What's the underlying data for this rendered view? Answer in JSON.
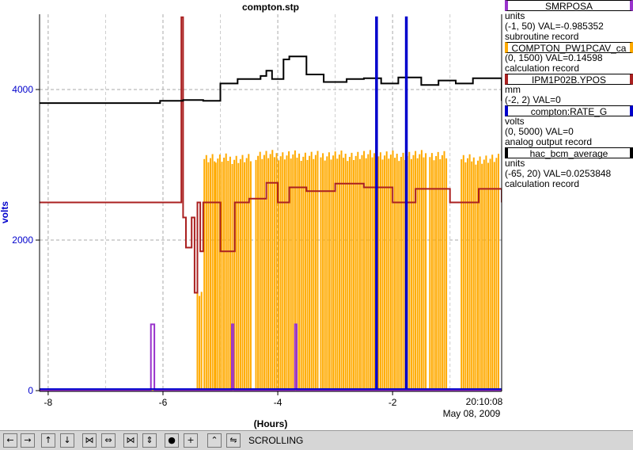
{
  "chart_data": {
    "type": "line",
    "title": "compton.stp",
    "xlabel": "(Hours)",
    "ylabel": "volts",
    "xlim": [
      -8.15,
      -0.1
    ],
    "ylim": [
      -10,
      5000
    ],
    "x_ticks": [
      -8,
      -6,
      -4,
      -2
    ],
    "x_tick_labels": [
      "-8",
      "-6",
      "-4",
      "-2"
    ],
    "y_ticks": [
      0,
      2000,
      4000
    ],
    "y_tick_labels": [
      "0",
      "2000",
      "4000"
    ],
    "timestamp_time": "20:10:08",
    "timestamp_date": "May 08, 2009",
    "grid": true,
    "series": [
      {
        "name": "hac_bcm_average",
        "color": "#000000",
        "range": "(-65, 20)",
        "x": [
          -8.15,
          -6.1,
          -6.05,
          -5.7,
          -5.65,
          -5.35,
          -5.3,
          -5.0,
          -4.7,
          -4.3,
          -4.2,
          -4.1,
          -3.9,
          -3.8,
          -3.5,
          -3.2,
          -2.8,
          -2.5,
          -2.2,
          -1.9,
          -1.5,
          -1.2,
          -0.9,
          -0.6,
          -0.1
        ],
        "y": [
          3820,
          3820,
          3850,
          3850,
          3860,
          3860,
          3850,
          4080,
          4140,
          4180,
          4250,
          4140,
          4400,
          4440,
          4200,
          4100,
          4140,
          4150,
          4080,
          4160,
          4060,
          4120,
          4080,
          4150,
          3850
        ]
      },
      {
        "name": "IPM1P02B.YPOS",
        "color": "#aa2020",
        "range": "(-2, 2)",
        "x": [
          -8.15,
          -5.7,
          -5.68,
          -5.65,
          -5.6,
          -5.5,
          -5.45,
          -5.4,
          -5.35,
          -5.3,
          -5.0,
          -4.9,
          -4.8,
          -4.75,
          -4.7,
          -4.5,
          -4.2,
          -4.0,
          -3.8,
          -3.5,
          -3.0,
          -2.5,
          -2.0,
          -1.6,
          -1.0,
          -0.5,
          -0.1
        ],
        "y": [
          2500,
          2500,
          4960,
          2300,
          1900,
          2300,
          1300,
          2500,
          1850,
          2500,
          1850,
          1850,
          1850,
          2500,
          2500,
          2550,
          2760,
          2500,
          2700,
          2650,
          2750,
          2700,
          2500,
          2680,
          2500,
          2680,
          2500
        ]
      },
      {
        "name": "COMPTON_PW1PCAV_ca",
        "color": "#ffaa00",
        "range": "(0, 1500)",
        "bursts": [
          [
            -5.4,
            -5.3,
            1400
          ],
          [
            -5.28,
            -5.1,
            3150
          ],
          [
            -5.08,
            -4.45,
            3150
          ],
          [
            -4.38,
            -3.3,
            3200
          ],
          [
            -3.25,
            -1.4,
            3200
          ],
          [
            -1.35,
            -1.05,
            3200
          ],
          [
            -0.8,
            -0.15,
            3150
          ]
        ],
        "baseline": 10
      },
      {
        "name": "SMRPOSA",
        "color": "#9933cc",
        "range": "(-1, 50)",
        "x": [
          -8.15,
          -6.22,
          -6.21,
          -6.16,
          -6.15,
          -4.82,
          -4.8,
          -4.79,
          -4.77,
          -3.72,
          -3.7,
          -3.69,
          -3.67,
          -0.1
        ],
        "y": [
          0,
          0,
          880,
          880,
          0,
          0,
          880,
          880,
          0,
          0,
          880,
          880,
          0,
          0
        ]
      },
      {
        "name": "compton:RATE_G",
        "color": "#0000cc",
        "range": "(0, 5000)",
        "x": [
          -8.15,
          -2.3,
          -2.29,
          -2.28,
          -2.27,
          -1.78,
          -1.77,
          -1.76,
          -1.75,
          -1.7,
          -0.1
        ],
        "y": [
          20,
          20,
          4960,
          4960,
          20,
          20,
          4960,
          4960,
          20,
          20,
          20
        ]
      }
    ]
  },
  "legend": [
    {
      "name": "SMRPOSA",
      "color": "#9933cc",
      "line1": "units",
      "line2": "(-1, 50) VAL=-0.985352",
      "line3": "subroutine record"
    },
    {
      "name": "COMPTON_PW1PCAV_ca",
      "color": "#ffaa00",
      "line1": "(0, 1500) VAL=0.14598",
      "line2": "calculation record"
    },
    {
      "name": "IPM1P02B.YPOS",
      "color": "#aa2020",
      "line1": "mm",
      "line2": "(-2, 2) VAL=0"
    },
    {
      "name": "compton:RATE_G",
      "color": "#0000cc",
      "line1": "volts",
      "line2": "(0, 5000) VAL=0",
      "line3": "analog output record"
    },
    {
      "name": "hac_bcm_average",
      "color": "#000000",
      "line1": "units",
      "line2": "(-65, 20) VAL=0.0253848",
      "line3": "calculation record"
    }
  ],
  "toolbar": {
    "status_label": "SCROLLING",
    "buttons": [
      "←",
      "→",
      "↑",
      "↓",
      "⋈",
      "⇔",
      "⋈",
      "⇕",
      "●",
      "+",
      "⌃",
      "⇋"
    ]
  }
}
